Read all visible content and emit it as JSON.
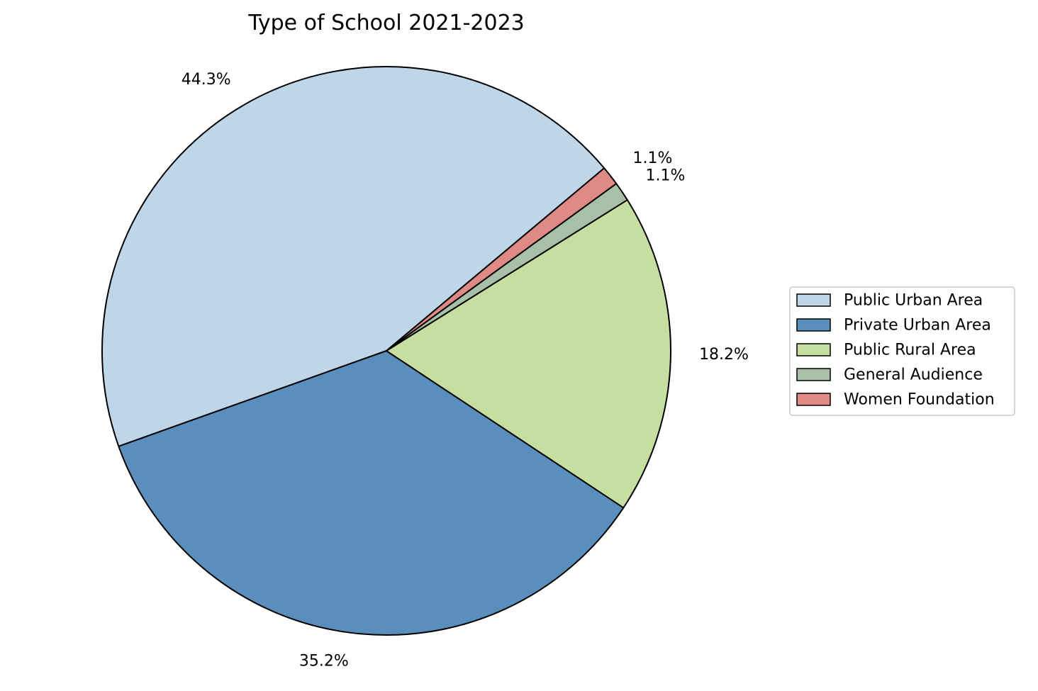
{
  "chart_data": {
    "type": "pie",
    "title": "Type of School 2021-2023",
    "start_angle_deg": 40,
    "direction": "counterclockwise",
    "legend_position": "center-right",
    "slices": [
      {
        "label": "Public Urban Area",
        "value": 44.3,
        "value_label": "44.3%",
        "color": "#bed6e8"
      },
      {
        "label": "Private Urban Area",
        "value": 35.2,
        "value_label": "35.2%",
        "color": "#5a8fbd"
      },
      {
        "label": "Public Rural Area",
        "value": 18.2,
        "value_label": "18.2%",
        "color": "#c6dfa1"
      },
      {
        "label": "General Audience",
        "value": 1.1,
        "value_label": "1.1%",
        "color": "#a8bfa8"
      },
      {
        "label": "Women Foundation",
        "value": 1.1,
        "value_label": "1.1%",
        "color": "#e08a86"
      }
    ]
  }
}
